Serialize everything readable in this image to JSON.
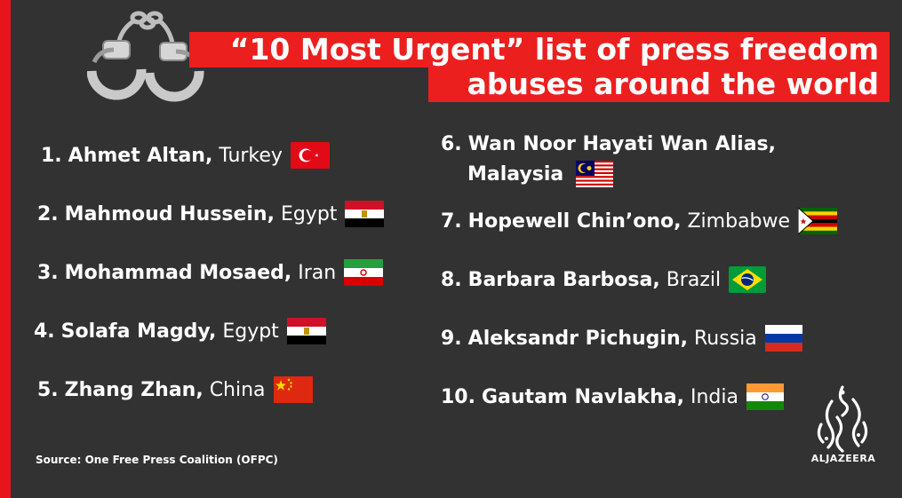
{
  "title": {
    "line1": "“10 Most Urgent” list of press freedom",
    "line2": "abuses around the world"
  },
  "entries": [
    {
      "num": "1.",
      "name": "Ahmet Altan,",
      "country": "Turkey",
      "flag": "turkey-flag"
    },
    {
      "num": "2.",
      "name": "Mahmoud Hussein,",
      "country": "Egypt",
      "flag": "egypt-flag"
    },
    {
      "num": "3.",
      "name": "Mohammad Mosaed,",
      "country": "Iran",
      "flag": "iran-flag"
    },
    {
      "num": "4.",
      "name": "Solafa Magdy,",
      "country": "Egypt",
      "flag": "egypt-flag"
    },
    {
      "num": "5.",
      "name": "Zhang Zhan,",
      "country": "China",
      "flag": "china-flag"
    },
    {
      "num": "6.",
      "name": "Wan Noor Hayati Wan Alias,",
      "country": "Malaysia",
      "flag": "malaysia-flag"
    },
    {
      "num": "7.",
      "name": "Hopewell Chin’ono,",
      "country": "Zimbabwe",
      "flag": "zimbabwe-flag"
    },
    {
      "num": "8.",
      "name": "Barbara Barbosa,",
      "country": "Brazil",
      "flag": "brazil-flag"
    },
    {
      "num": "9.",
      "name": "Aleksandr Pichugin,",
      "country": "Russia",
      "flag": "russia-flag"
    },
    {
      "num": "10.",
      "name": "Gautam Navlakha,",
      "country": "India",
      "flag": "india-flag"
    }
  ],
  "source": "Source: One Free Press Coalition (OFPC)",
  "logo": {
    "text": "ALJAZEERA",
    "icon": "aljazeera-logo-icon"
  },
  "decor": {
    "icon": "handcuffs-icon"
  },
  "colors": {
    "accent": "#ec1f1f",
    "background": "#323232",
    "text": "#ffffff"
  }
}
